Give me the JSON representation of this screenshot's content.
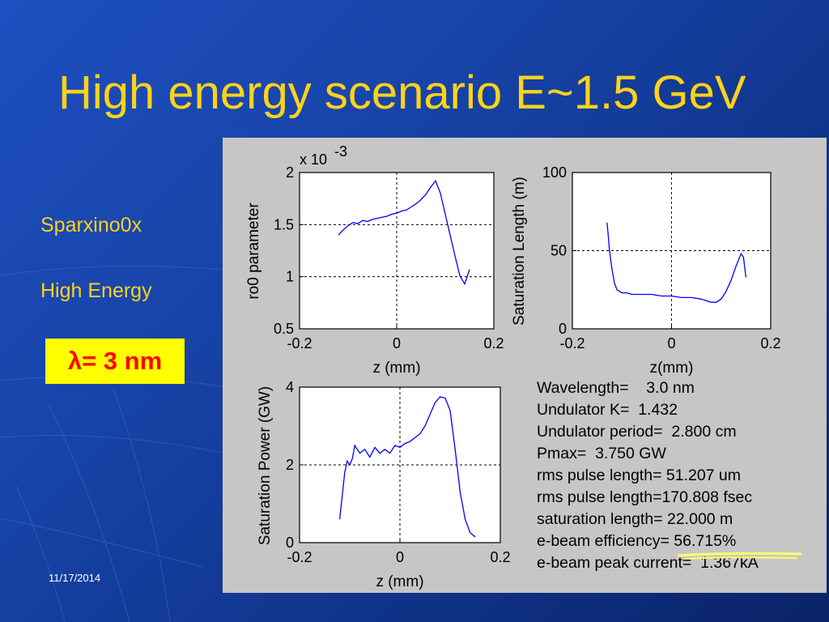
{
  "slide": {
    "title": "High energy scenario E~1.5 GeV",
    "label_code": "Sparxino0x",
    "label_case": "High Energy",
    "wavelength_badge": "λ= 3 nm",
    "date": "11/17/2014"
  },
  "chart_data": [
    {
      "type": "line",
      "xlabel": "z (mm)",
      "ylabel": "ro0 parameter",
      "exponent": "x 10",
      "exponent_power": "-3",
      "xlim": [
        -0.2,
        0.2
      ],
      "ylim": [
        0.5,
        2
      ],
      "x_ticks": [
        "-0.2",
        "0",
        "0.2"
      ],
      "y_ticks": [
        "0.5",
        "1",
        "1.5",
        "2"
      ],
      "grid": "dashed lines at x=0 and y=1, 1.5",
      "color": "#0000ff",
      "x": [
        -0.12,
        -0.11,
        -0.1,
        -0.09,
        -0.08,
        -0.07,
        -0.06,
        -0.05,
        -0.04,
        -0.03,
        -0.02,
        -0.01,
        0.0,
        0.01,
        0.02,
        0.03,
        0.04,
        0.05,
        0.06,
        0.07,
        0.08,
        0.09,
        0.1,
        0.11,
        0.12,
        0.13,
        0.14,
        0.15
      ],
      "y": [
        1.4,
        1.45,
        1.49,
        1.52,
        1.51,
        1.54,
        1.53,
        1.55,
        1.56,
        1.57,
        1.58,
        1.6,
        1.61,
        1.63,
        1.64,
        1.67,
        1.7,
        1.74,
        1.79,
        1.86,
        1.92,
        1.8,
        1.6,
        1.4,
        1.2,
        1.01,
        0.93,
        1.07
      ]
    },
    {
      "type": "line",
      "xlabel": "z(mm)",
      "ylabel": "Saturation Length (m)",
      "xlim": [
        -0.2,
        0.2
      ],
      "ylim": [
        0,
        100
      ],
      "x_ticks": [
        "-0.2",
        "0",
        "0.2"
      ],
      "y_ticks": [
        "0",
        "50",
        "100"
      ],
      "grid": "dashed lines at x=0 and y=50",
      "color": "#0000ff",
      "x": [
        -0.13,
        -0.125,
        -0.12,
        -0.115,
        -0.11,
        -0.1,
        -0.09,
        -0.08,
        -0.06,
        -0.04,
        -0.02,
        0.0,
        0.02,
        0.04,
        0.06,
        0.07,
        0.08,
        0.09,
        0.1,
        0.11,
        0.12,
        0.13,
        0.14,
        0.145,
        0.15
      ],
      "y": [
        68,
        50,
        38,
        29,
        25,
        23,
        23,
        22,
        22,
        22,
        21,
        21,
        20,
        20,
        19,
        18,
        17,
        17,
        19,
        24,
        31,
        40,
        48,
        46,
        33
      ]
    },
    {
      "type": "line",
      "xlabel": "z (mm)",
      "ylabel": "Saturation Power (GW)",
      "xlim": [
        -0.2,
        0.2
      ],
      "ylim": [
        0,
        4
      ],
      "x_ticks": [
        "-0.2",
        "0",
        "0.2"
      ],
      "y_ticks": [
        "0",
        "2",
        "4"
      ],
      "grid": "dashed lines at x=0 and y=2",
      "color": "#0000ff",
      "x": [
        -0.12,
        -0.11,
        -0.105,
        -0.1,
        -0.095,
        -0.09,
        -0.08,
        -0.07,
        -0.06,
        -0.05,
        -0.04,
        -0.03,
        -0.02,
        -0.01,
        0.0,
        0.01,
        0.02,
        0.03,
        0.04,
        0.05,
        0.06,
        0.07,
        0.08,
        0.09,
        0.1,
        0.11,
        0.12,
        0.13,
        0.14,
        0.15
      ],
      "y": [
        0.6,
        1.8,
        2.1,
        2.0,
        2.15,
        2.5,
        2.3,
        2.4,
        2.2,
        2.45,
        2.3,
        2.4,
        2.3,
        2.5,
        2.45,
        2.55,
        2.6,
        2.7,
        2.8,
        3.0,
        3.3,
        3.6,
        3.75,
        3.72,
        3.4,
        2.4,
        1.3,
        0.6,
        0.25,
        0.15
      ]
    }
  ],
  "parameters": [
    "Wavelength=    3.0 nm",
    "Undulator K=  1.432",
    "Undulator period=  2.800 cm",
    "Pmax=  3.750 GW",
    "rms pulse length= 51.207 um",
    "rms pulse length=170.808 fsec",
    "saturation length= 22.000 m",
    "e-beam efficiency= 56.715%",
    "e-beam peak current=  1.367kA"
  ]
}
